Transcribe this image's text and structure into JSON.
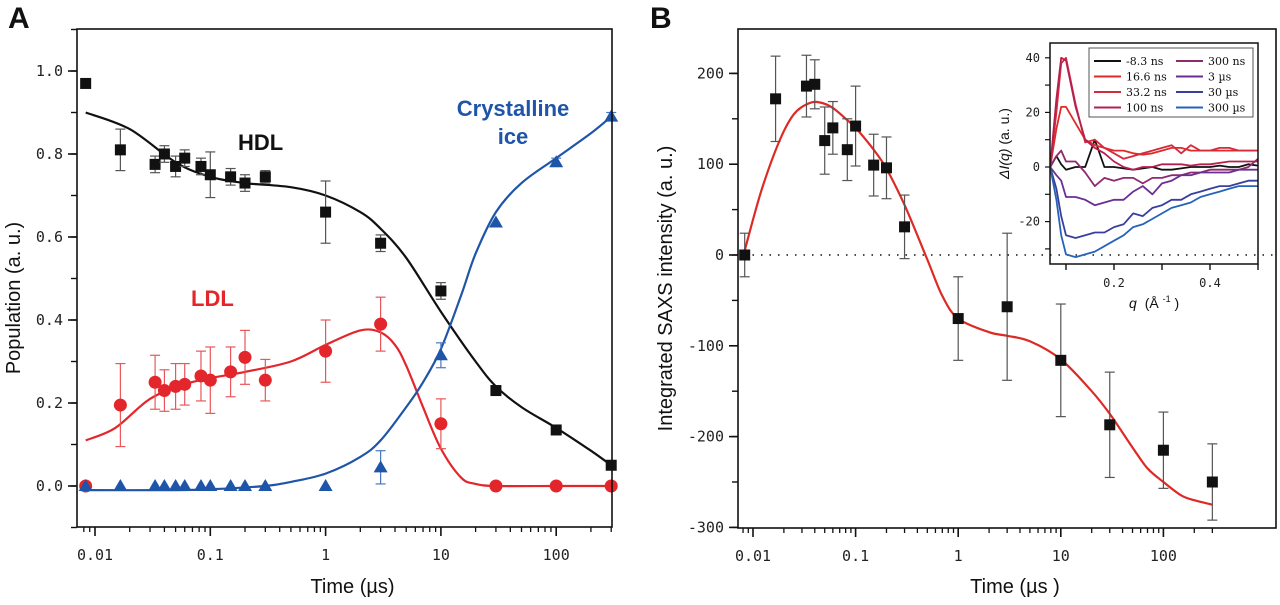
{
  "chart_data": [
    {
      "panel": "A",
      "type": "scatter",
      "panel_label": "A",
      "xlabel": "Time (µs)",
      "ylabel": "Population (a. u.)",
      "xscale": "log",
      "xlim": [
        0.0075,
        300
      ],
      "ylim": [
        -0.1,
        1.1
      ],
      "xticks": [
        0.01,
        0.1,
        1,
        10,
        100
      ],
      "xtick_labels": [
        "0.01",
        "0.1",
        "1",
        "10",
        "100"
      ],
      "yticks": [
        0.0,
        0.2,
        0.4,
        0.6,
        0.8,
        1.0
      ],
      "ytick_labels": [
        "0.0",
        "0.2",
        "0.4",
        "0.6",
        "0.8",
        "1.0"
      ],
      "grid": false,
      "series": [
        {
          "name": "HDL",
          "label": "HDL",
          "color": "#111111",
          "marker": "square",
          "x": [
            0.0083,
            0.0166,
            0.0332,
            0.04,
            0.05,
            0.06,
            0.083,
            0.1,
            0.15,
            0.2,
            0.3,
            1,
            3,
            10,
            30,
            100,
            300
          ],
          "y": [
            0.97,
            0.81,
            0.775,
            0.8,
            0.77,
            0.79,
            0.77,
            0.75,
            0.745,
            0.73,
            0.745,
            0.66,
            0.585,
            0.47,
            0.23,
            0.135,
            0.05
          ],
          "err": [
            0,
            0.05,
            0.02,
            0.02,
            0.025,
            0.02,
            0.02,
            0.055,
            0.02,
            0.02,
            0.015,
            0.075,
            0.02,
            0.02,
            0,
            0,
            0
          ],
          "fit": {
            "x": [
              0.0083,
              0.02,
              0.05,
              0.1,
              0.2,
              0.5,
              1,
              2,
              3,
              5,
              10,
              20,
              30,
              50,
              100,
              200,
              300
            ],
            "y": [
              0.9,
              0.86,
              0.78,
              0.745,
              0.73,
              0.72,
              0.7,
              0.66,
              0.62,
              0.55,
              0.42,
              0.3,
              0.24,
              0.19,
              0.14,
              0.085,
              0.05
            ]
          }
        },
        {
          "name": "LDL",
          "label": "LDL",
          "color": "#e3262b",
          "marker": "circle",
          "x": [
            0.0083,
            0.0166,
            0.0332,
            0.04,
            0.05,
            0.06,
            0.083,
            0.1,
            0.15,
            0.2,
            0.3,
            1,
            3,
            10,
            30,
            100,
            300
          ],
          "y": [
            0.0,
            0.195,
            0.25,
            0.23,
            0.24,
            0.245,
            0.265,
            0.255,
            0.275,
            0.31,
            0.255,
            0.325,
            0.39,
            0.15,
            0.0,
            0.0,
            0.0
          ],
          "err": [
            0,
            0.1,
            0.065,
            0.05,
            0.055,
            0.05,
            0.06,
            0.08,
            0.06,
            0.065,
            0.05,
            0.075,
            0.065,
            0.06,
            0,
            0,
            0
          ],
          "fit": {
            "x": [
              0.0083,
              0.015,
              0.03,
              0.06,
              0.1,
              0.2,
              0.5,
              1,
              2,
              3,
              4,
              5,
              7,
              10,
              15,
              20,
              30,
              100,
              300
            ],
            "y": [
              0.11,
              0.14,
              0.21,
              0.245,
              0.26,
              0.275,
              0.3,
              0.34,
              0.375,
              0.37,
              0.34,
              0.29,
              0.19,
              0.09,
              0.02,
              0.005,
              0.0,
              0.0,
              0.0
            ]
          }
        },
        {
          "name": "Crystalline ice",
          "label": "Crystalline\nice",
          "color": "#1f55a8",
          "marker": "triangle",
          "x": [
            0.0083,
            0.0166,
            0.0332,
            0.04,
            0.05,
            0.06,
            0.083,
            0.1,
            0.15,
            0.2,
            0.3,
            1,
            3,
            10,
            30,
            100,
            300
          ],
          "y": [
            0.0,
            0.0,
            0.0,
            0.0,
            0.0,
            0.0,
            0.0,
            0.0,
            0.0,
            0.0,
            0.0,
            0.0,
            0.045,
            0.315,
            0.635,
            0.78,
            0.89
          ],
          "err": [
            0,
            0,
            0,
            0,
            0,
            0,
            0,
            0,
            0,
            0,
            0,
            0,
            0.04,
            0.03,
            0,
            0.01,
            0.01
          ],
          "fit": {
            "x": [
              0.0083,
              0.05,
              0.1,
              0.3,
              0.5,
              1,
              2,
              3,
              5,
              7,
              10,
              15,
              20,
              30,
              50,
              100,
              200,
              300
            ],
            "y": [
              -0.01,
              -0.01,
              -0.008,
              0.0,
              0.01,
              0.03,
              0.07,
              0.11,
              0.19,
              0.25,
              0.33,
              0.46,
              0.56,
              0.66,
              0.73,
              0.79,
              0.85,
              0.89
            ]
          }
        }
      ]
    },
    {
      "panel": "B",
      "type": "scatter",
      "panel_label": "B",
      "xlabel": "Time (µs )",
      "ylabel": "Integrated SAXS intensity (a. u.)",
      "xscale": "log",
      "xlim": [
        0.0075,
        300
      ],
      "ylim": [
        -300,
        250
      ],
      "xticks": [
        0.01,
        0.1,
        1,
        10,
        100
      ],
      "xtick_labels": [
        "0.01",
        "0.1",
        "1",
        "10",
        "100"
      ],
      "yticks": [
        -300,
        -200,
        -100,
        0,
        100,
        200
      ],
      "ytick_labels": [
        "-300",
        "-200",
        "-100",
        "0",
        "100",
        "200"
      ],
      "reference_line": {
        "y": 0,
        "style": "dotted"
      },
      "grid": false,
      "series": [
        {
          "name": "Integrated SAXS intensity",
          "color": "#111111",
          "marker": "square",
          "x": [
            0.0083,
            0.0166,
            0.0332,
            0.04,
            0.05,
            0.06,
            0.083,
            0.1,
            0.15,
            0.2,
            0.3,
            1,
            3,
            10,
            30,
            100,
            300
          ],
          "y": [
            0,
            172,
            186,
            188,
            126,
            140,
            116,
            142,
            99,
            96,
            31,
            -70,
            -57,
            -116,
            -187,
            -215,
            -250
          ],
          "err": [
            24,
            47,
            34,
            27,
            37,
            29,
            34,
            44,
            34,
            34,
            35,
            46,
            81,
            62,
            58,
            42,
            42
          ]
        },
        {
          "name": "Fit",
          "color": "#dd2a25",
          "line": true,
          "x": [
            0.0083,
            0.012,
            0.018,
            0.025,
            0.035,
            0.045,
            0.06,
            0.08,
            0.1,
            0.15,
            0.2,
            0.3,
            0.5,
            0.7,
            1,
            2,
            3,
            5,
            10,
            20,
            30,
            50,
            70,
            100,
            150,
            200,
            300
          ],
          "y": [
            5,
            70,
            125,
            155,
            167,
            168,
            162,
            150,
            140,
            116,
            95,
            55,
            -5,
            -45,
            -70,
            -85,
            -89,
            -95,
            -115,
            -150,
            -175,
            -212,
            -235,
            -250,
            -265,
            -270,
            -275
          ]
        }
      ],
      "inset": {
        "type": "line",
        "xlabel": "q (Å-1)",
        "xlabel_italic": "q",
        "xlabel_unit": "(Å",
        "xlabel_sup": "-1",
        "xlabel_close": ")",
        "ylabel": "ΔI(q) (a. u.)",
        "ylabel_italic": "ΔI(q)",
        "ylabel_unit": " (a. u.)",
        "xlim": [
          0.067,
          0.5
        ],
        "ylim": [
          -35,
          45
        ],
        "xticks": [
          0.2,
          0.4
        ],
        "xtick_labels": [
          "0.2",
          "0.4"
        ],
        "yticks": [
          -20,
          0,
          20,
          40
        ],
        "ytick_labels": [
          "-20",
          "0",
          "20",
          "40"
        ],
        "q": [
          0.067,
          0.08,
          0.09,
          0.1,
          0.12,
          0.14,
          0.16,
          0.18,
          0.2,
          0.22,
          0.24,
          0.26,
          0.28,
          0.3,
          0.32,
          0.34,
          0.36,
          0.38,
          0.4,
          0.42,
          0.44,
          0.46,
          0.48,
          0.5
        ],
        "series": [
          {
            "name": "-8.3 ns",
            "color": "#111111",
            "y": [
              0,
              4,
              1,
              -1,
              0,
              0,
              10,
              0,
              0,
              -0.5,
              -1,
              -0.5,
              0,
              -1,
              -1,
              -0.5,
              0,
              0,
              0,
              0.5,
              0,
              0,
              1,
              0.5
            ]
          },
          {
            "name": "16.6 ns",
            "color": "#e02a2a",
            "y": [
              0,
              14,
              22,
              22,
              16,
              10,
              8,
              7,
              6,
              6,
              5,
              4.5,
              5,
              6,
              7,
              7,
              6,
              6,
              6,
              6,
              6,
              6,
              6,
              6
            ]
          },
          {
            "name": "33.2 ns",
            "color": "#d42a3c",
            "y": [
              0,
              20,
              38,
              40,
              23,
              9,
              10,
              7,
              5,
              3,
              4,
              5,
              6,
              7,
              8,
              5,
              8,
              6,
              6,
              7,
              7,
              6,
              6,
              6
            ]
          },
          {
            "name": "100 ns",
            "color": "#b5204e",
            "y": [
              0,
              25,
              40,
              39,
              22,
              10,
              7,
              5,
              2,
              0,
              -1,
              0,
              0,
              1,
              1,
              1,
              0.5,
              1,
              1,
              1.5,
              2,
              2,
              2,
              2
            ]
          },
          {
            "name": "300 ns",
            "color": "#8e2a6e",
            "y": [
              0,
              4,
              6,
              2,
              2,
              -2,
              -7,
              -4,
              -5,
              -4,
              -4,
              -6,
              -4,
              -4,
              -3,
              -3,
              -2,
              -2,
              -1,
              -1,
              -1,
              -1,
              0,
              3
            ]
          },
          {
            "name": "3 µs",
            "color": "#6a2f94",
            "y": [
              0,
              -3,
              -5,
              -11,
              -11,
              -12,
              -14,
              -13,
              -12,
              -12,
              -9,
              -7,
              -10,
              -6,
              -5,
              -3,
              -3,
              -2,
              -2,
              -2,
              -2,
              -1,
              -1,
              -1
            ]
          },
          {
            "name": "30 µs",
            "color": "#3a3f9e",
            "y": [
              0,
              -8,
              -18,
              -25,
              -26,
              -25,
              -24,
              -24,
              -22,
              -21,
              -17,
              -18,
              -15,
              -14,
              -12,
              -12,
              -10,
              -9,
              -8,
              -7,
              -7,
              -6,
              -5,
              -5
            ]
          },
          {
            "name": "300 µs",
            "color": "#2663b8",
            "y": [
              0,
              -12,
              -25,
              -32,
              -33,
              -32,
              -31,
              -29,
              -27,
              -25,
              -22,
              -21,
              -19,
              -17,
              -15,
              -14,
              -13,
              -11,
              -10,
              -9,
              -8,
              -7,
              -7,
              -7
            ]
          }
        ],
        "legend": {
          "placement": "top-right",
          "columns": 2
        }
      }
    }
  ]
}
